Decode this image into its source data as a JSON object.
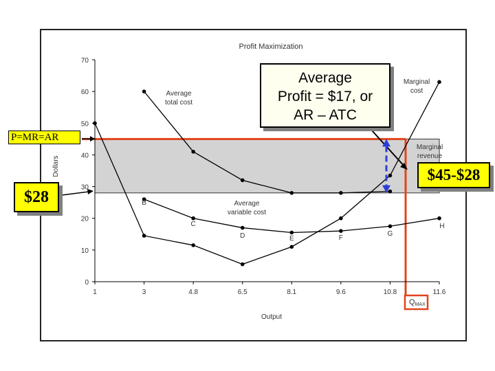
{
  "chart_data": {
    "type": "line",
    "title": "Profit Maximization",
    "xlabel": "Output",
    "ylabel": "Dollars",
    "categories": [
      "1",
      "3",
      "4.8",
      "6.5",
      "8.1",
      "9.6",
      "10.8",
      "11.6"
    ],
    "ylim": [
      0,
      70
    ],
    "yticks": [
      0,
      10,
      20,
      30,
      40,
      50,
      60,
      70
    ],
    "series": [
      {
        "name": "Average total cost",
        "values": [
          null,
          60,
          41,
          32,
          28,
          28,
          28.5,
          null
        ]
      },
      {
        "name": "Average variable cost",
        "values": [
          null,
          26,
          20,
          17,
          15.5,
          16,
          17.5,
          20
        ]
      },
      {
        "name": "Marginal cost",
        "values": [
          50,
          14.5,
          11.5,
          5.5,
          11,
          20,
          33.5,
          63
        ]
      },
      {
        "name": "Marginal revenue",
        "values": [
          45,
          45,
          45,
          45,
          45,
          45,
          45,
          45
        ]
      }
    ],
    "point_labels": [
      "B",
      "C",
      "D",
      "E",
      "F",
      "G",
      "H"
    ],
    "profit_area": {
      "price": 45,
      "average_total_cost": 28
    },
    "qmax_label": "Q",
    "qmax_subscript": "MAX",
    "colors": {
      "curves": "#000000",
      "profit_area": "#d3d3d3",
      "highlight": "#e0441a",
      "arrow": "#2b3fd6",
      "callout": "#ffff00"
    }
  },
  "annotations": {
    "avg_profit_line1": "Average",
    "avg_profit_line2": "Profit = $17, or",
    "avg_profit_line3": "AR – ATC",
    "price_label": "P=MR=AR",
    "cost_label": "$28",
    "difference_label": "$45-$28",
    "atc_label_1": "Average",
    "atc_label_2": "total cost",
    "avc_label_1": "Average",
    "avc_label_2": "variable cost",
    "mc_label_1": "Marginal",
    "mc_label_2": "cost",
    "mr_label_1": "Marginal",
    "mr_label_2": "revenue"
  }
}
